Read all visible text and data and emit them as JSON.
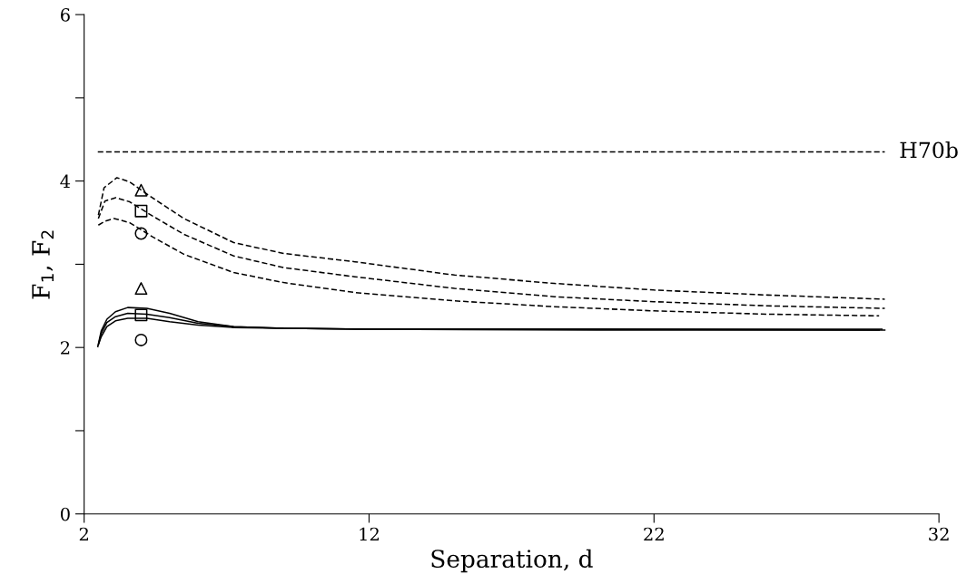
{
  "chart_data": {
    "type": "line",
    "xlabel": "Separation, d",
    "ylabel": "F$_{1}$, F$_{2}$",
    "xlim": [
      2,
      32
    ],
    "xticks": [
      2,
      12,
      22,
      32
    ],
    "ylim": [
      0,
      6
    ],
    "yticks": [
      0,
      {
        "value": 1,
        "label": null
      },
      2,
      {
        "value": 3,
        "label": null
      },
      4,
      {
        "value": 5,
        "label": null
      },
      6
    ],
    "grid": false,
    "legend": false,
    "ref_lines": [
      {
        "axis": "y",
        "value": 4.35,
        "label": "H70b",
        "color": "#000000",
        "line_style": "dashed"
      }
    ],
    "series": [
      {
        "color": "#000000",
        "line_style": "dashed",
        "x": [
          2.5,
          2.7,
          3.15,
          3.6,
          4.39,
          5.5,
          7.25,
          9.0,
          11.5,
          15.0,
          18.5,
          22.0,
          26.0,
          30.1
        ],
        "values": [
          3.59,
          3.92,
          4.04,
          3.99,
          3.8,
          3.55,
          3.26,
          3.13,
          3.03,
          2.87,
          2.77,
          2.69,
          2.63,
          2.58
        ]
      },
      {
        "color": "#000000",
        "line_style": "dashed",
        "x": [
          2.5,
          2.73,
          3.11,
          3.6,
          4.4,
          5.5,
          7.25,
          9.0,
          11.5,
          15.0,
          18.5,
          22.0,
          26.0,
          30.1
        ],
        "values": [
          3.55,
          3.76,
          3.8,
          3.75,
          3.58,
          3.36,
          3.1,
          2.96,
          2.85,
          2.71,
          2.61,
          2.55,
          2.5,
          2.47
        ]
      },
      {
        "color": "#000000",
        "line_style": "dashed",
        "x": [
          2.5,
          2.75,
          3.05,
          3.6,
          4.4,
          5.5,
          7.25,
          9.0,
          11.5,
          15.0,
          18.5,
          22.0,
          26.0,
          29.9
        ],
        "values": [
          3.47,
          3.52,
          3.55,
          3.5,
          3.33,
          3.12,
          2.9,
          2.78,
          2.66,
          2.56,
          2.49,
          2.44,
          2.4,
          2.38
        ]
      },
      {
        "color": "#000000",
        "line_style": "solid",
        "x": [
          2.48,
          2.6,
          2.8,
          3.1,
          3.53,
          4.2,
          5.0,
          6.0,
          7.25,
          9.0,
          12.0,
          20.0,
          30.0
        ],
        "values": [
          2.01,
          2.2,
          2.34,
          2.43,
          2.48,
          2.47,
          2.41,
          2.31,
          2.25,
          2.23,
          2.22,
          2.22,
          2.22
        ]
      },
      {
        "color": "#000000",
        "line_style": "solid",
        "x": [
          2.5,
          2.6,
          2.8,
          3.1,
          3.53,
          4.2,
          5.0,
          6.0,
          7.25,
          9.0,
          12.0,
          20.0,
          29.9
        ],
        "values": [
          2.03,
          2.17,
          2.3,
          2.37,
          2.41,
          2.4,
          2.36,
          2.29,
          2.25,
          2.23,
          2.22,
          2.22,
          2.21
        ]
      },
      {
        "color": "#000000",
        "line_style": "solid",
        "x": [
          2.52,
          2.6,
          2.8,
          3.1,
          3.53,
          4.2,
          5.0,
          6.0,
          7.25,
          9.0,
          12.0,
          20.0,
          30.1
        ],
        "values": [
          2.05,
          2.13,
          2.25,
          2.32,
          2.35,
          2.35,
          2.31,
          2.27,
          2.24,
          2.23,
          2.22,
          2.21,
          2.21
        ]
      },
      {
        "type": "scatter",
        "marker": "triangle",
        "color": "#000000",
        "x": [
          4.0,
          4.0
        ],
        "values": [
          3.89,
          2.71
        ]
      },
      {
        "type": "scatter",
        "marker": "square",
        "color": "#000000",
        "x": [
          4.0,
          4.0
        ],
        "values": [
          3.64,
          2.39
        ]
      },
      {
        "type": "scatter",
        "marker": "circle",
        "color": "#000000",
        "x": [
          4.0,
          4.0
        ],
        "values": [
          3.37,
          2.09
        ]
      }
    ]
  }
}
